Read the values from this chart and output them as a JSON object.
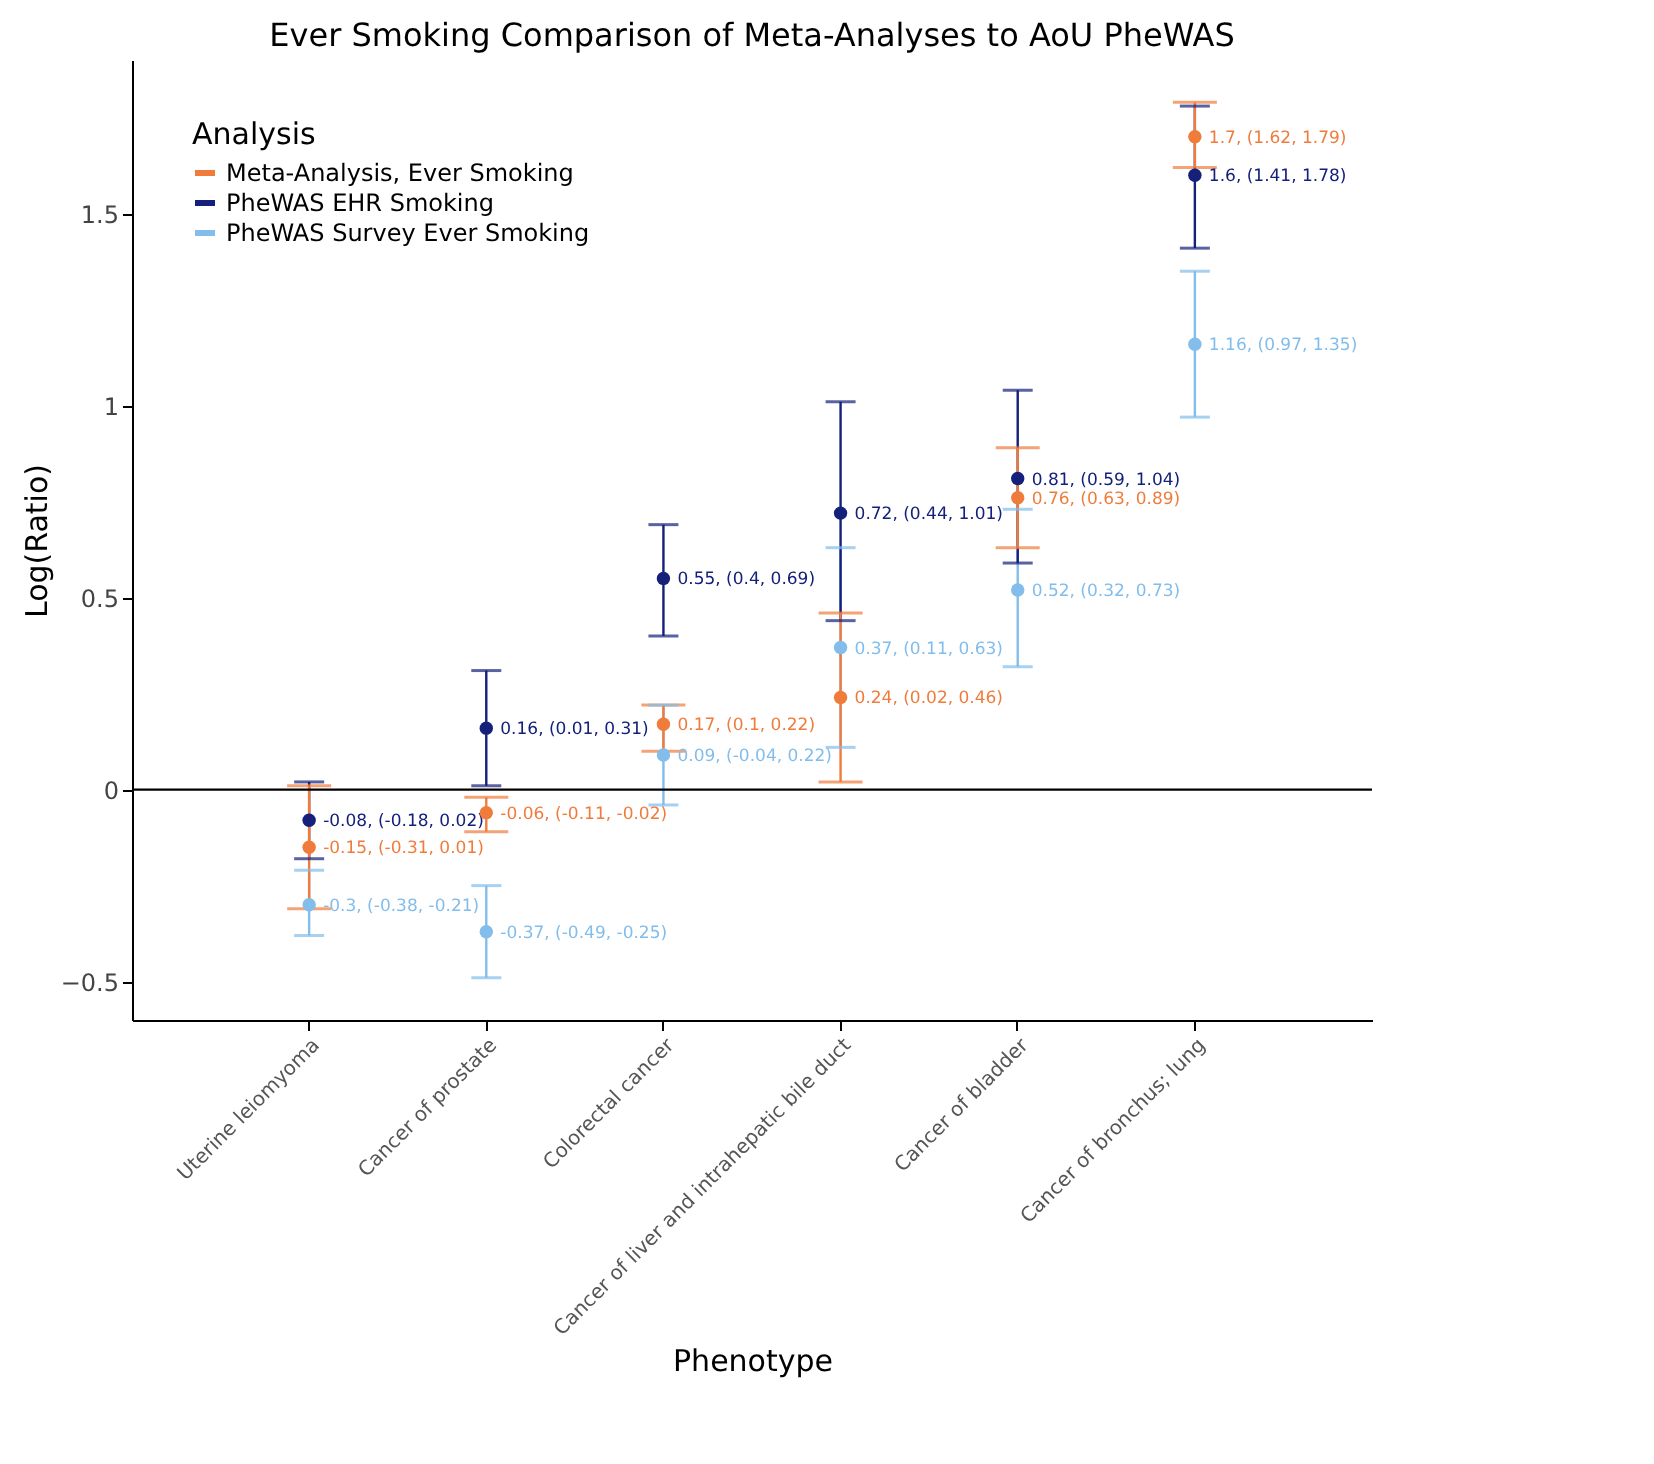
{
  "chart_data": {
    "type": "scatter",
    "title": "Ever Smoking Comparison of Meta-Analyses to AoU PheWAS",
    "xlabel": "Phenotype",
    "ylabel": "Log(Ratio)",
    "legend_title": "Analysis",
    "legend": "top left",
    "grid": false,
    "marker": "circle",
    "categories": [
      "Uterine leiomyoma",
      "Cancer of prostate",
      "Colorectal cancer",
      "Cancer of liver and intrahepatic bile duct",
      "Cancer of bladder",
      "Cancer of bronchus; lung"
    ],
    "ylim": [
      -0.6,
      1.9
    ],
    "yticks": [
      -0.5,
      0,
      0.5,
      1,
      1.5
    ],
    "ref_lines": [
      {
        "axis": "y",
        "value": 0,
        "color": "#000000"
      }
    ],
    "series": [
      {
        "name": "Meta-Analysis, Ever Smoking",
        "color": "#f07c3c",
        "values": [
          -0.15,
          -0.06,
          0.17,
          0.24,
          0.76,
          1.7
        ],
        "errors": [
          [
            -0.31,
            0.01
          ],
          [
            -0.11,
            -0.02
          ],
          [
            0.1,
            0.22
          ],
          [
            0.02,
            0.46
          ],
          [
            0.63,
            0.89
          ],
          [
            1.62,
            1.79
          ]
        ],
        "value_labels": [
          "-0.15, (-0.31, 0.01)",
          "-0.06, (-0.11, -0.02)",
          "0.17, (0.1, 0.22)",
          "0.24, (0.02, 0.46)",
          "0.76, (0.63, 0.89)",
          "1.7, (1.62, 1.79)"
        ]
      },
      {
        "name": "PheWAS EHR Smoking",
        "color": "#14207a",
        "values": [
          -0.08,
          0.16,
          0.55,
          0.72,
          0.81,
          1.6
        ],
        "errors": [
          [
            -0.18,
            0.02
          ],
          [
            0.01,
            0.31
          ],
          [
            0.4,
            0.69
          ],
          [
            0.44,
            1.01
          ],
          [
            0.59,
            1.04
          ],
          [
            1.41,
            1.78
          ]
        ],
        "value_labels": [
          "-0.08, (-0.18, 0.02)",
          "0.16, (0.01, 0.31)",
          "0.55, (0.4, 0.69)",
          "0.72, (0.44, 1.01)",
          "0.81, (0.59, 1.04)",
          "1.6, (1.41, 1.78)"
        ]
      },
      {
        "name": "PheWAS Survey Ever Smoking",
        "color": "#82bdeb",
        "values": [
          -0.3,
          -0.37,
          0.09,
          0.37,
          0.52,
          1.16
        ],
        "errors": [
          [
            -0.38,
            -0.21
          ],
          [
            -0.49,
            -0.25
          ],
          [
            -0.04,
            0.22
          ],
          [
            0.11,
            0.63
          ],
          [
            0.32,
            0.73
          ],
          [
            0.97,
            1.35
          ]
        ],
        "value_labels": [
          "-0.3, (-0.38, -0.21)",
          "-0.37, (-0.49, -0.25)",
          "0.09, (-0.04, 0.22)",
          "0.37, (0.11, 0.63)",
          "0.52, (0.32, 0.73)",
          "1.16, (0.97, 1.35)"
        ]
      }
    ]
  }
}
